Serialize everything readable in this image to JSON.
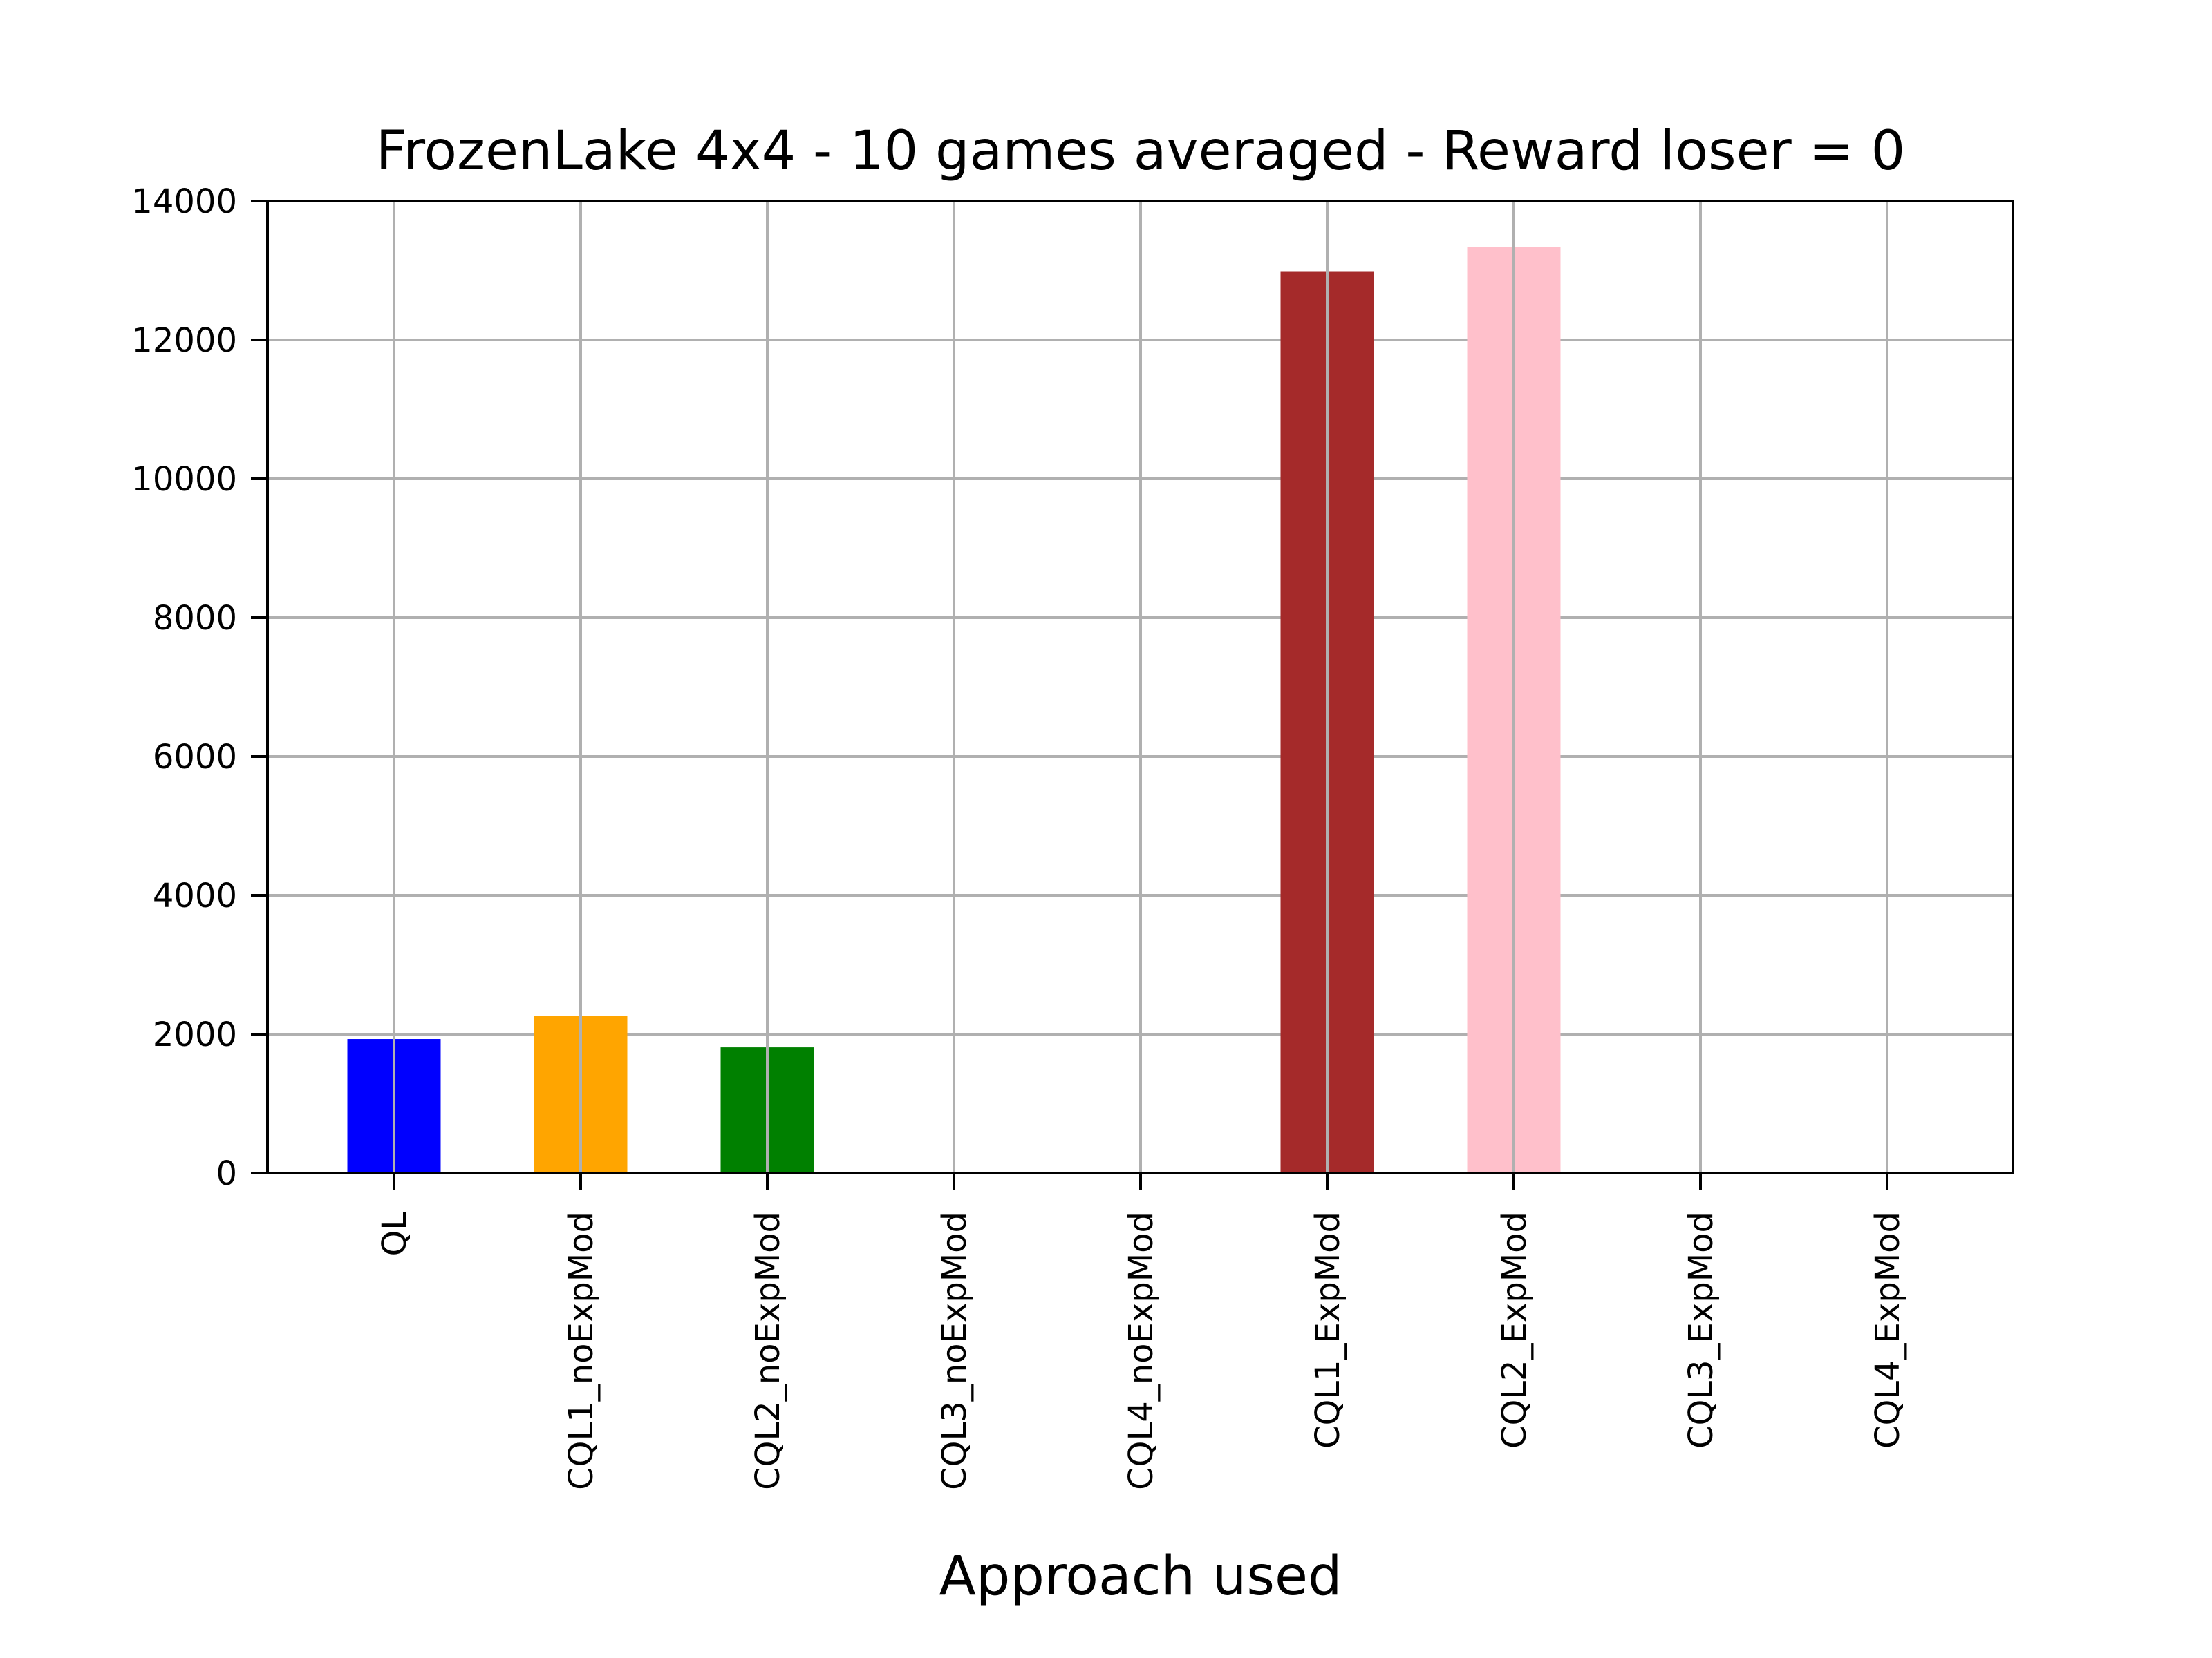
{
  "chart_data": {
    "type": "bar",
    "title": "FrozenLake 4x4 - 10 games averaged - Reward loser = 0",
    "xlabel": "Approach used",
    "ylabel": "",
    "categories": [
      "QL",
      "CQL1_noExpMod",
      "CQL2_noExpMod",
      "CQL3_noExpMod",
      "CQL4_noExpMod",
      "CQL1_ExpMod",
      "CQL2_ExpMod",
      "CQL3_ExpMod",
      "CQL4_ExpMod"
    ],
    "values": [
      1930,
      2260,
      1810,
      0,
      0,
      12980,
      13340,
      0,
      0
    ],
    "colors": [
      "#0000ff",
      "#ffa500",
      "#008000",
      "#0000ff",
      "#ffa500",
      "#a52a2a",
      "#ffc0cb",
      "#0000ff",
      "#ffa500"
    ],
    "ylim": [
      0,
      14000
    ],
    "yticks": [
      0,
      2000,
      4000,
      6000,
      8000,
      10000,
      12000,
      14000
    ],
    "grid": true,
    "legend": "none"
  }
}
